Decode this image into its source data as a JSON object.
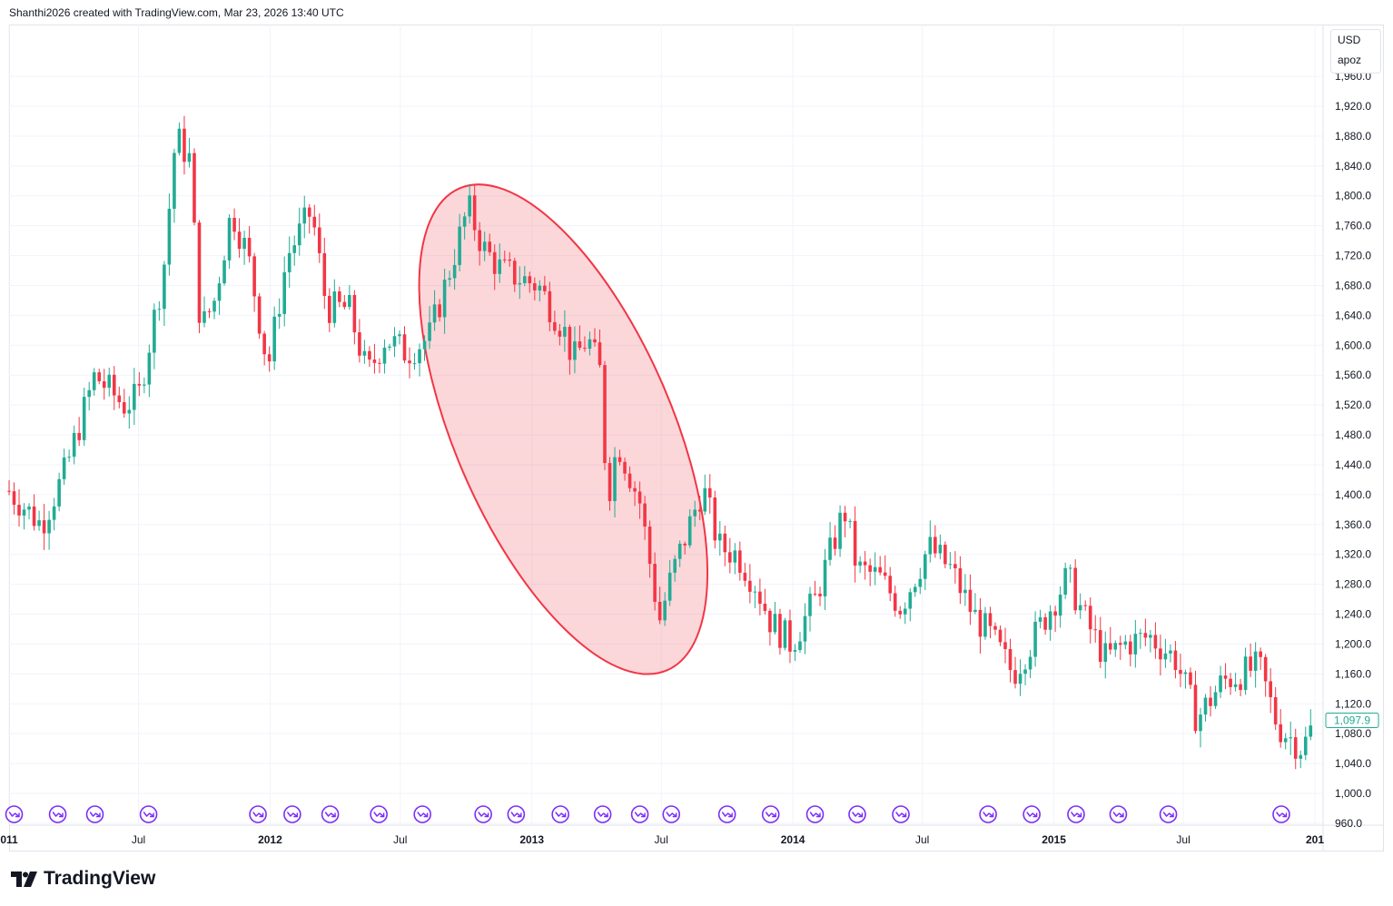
{
  "header": {
    "attribution": "Shanthi2026 created with TradingView.com, Mar 23, 2026 13:40 UTC"
  },
  "legend": {
    "currency": "USD",
    "unit": "apoz"
  },
  "brand": {
    "name": "TradingView"
  },
  "current_price": {
    "label": "1,097.9",
    "value": 1097.9,
    "color": "#22ab94"
  },
  "colors": {
    "up": "#22ab94",
    "down": "#f23645",
    "ellipse_stroke": "#f23645",
    "ellipse_fill": "#f2364533",
    "event_marker": "#7b2ff7",
    "grid": "#f0f3fa"
  },
  "icons": {
    "event_marker": "dividend-arrow-icon",
    "brand_logo": "tradingview-logo-icon"
  },
  "chart_data": {
    "type": "candlestick",
    "interval": "weekly",
    "y_axis": {
      "ticks": [
        "960.0",
        "1,000.0",
        "1,040.0",
        "1,080.0",
        "1,120.0",
        "1,160.0",
        "1,200.0",
        "1,240.0",
        "1,280.0",
        "1,320.0",
        "1,360.0",
        "1,400.0",
        "1,440.0",
        "1,480.0",
        "1,520.0",
        "1,560.0",
        "1,600.0",
        "1,640.0",
        "1,680.0",
        "1,720.0",
        "1,760.0",
        "1,800.0",
        "1,840.0",
        "1,880.0",
        "1,920.0",
        "1,960.0"
      ],
      "tick_values": [
        960,
        1000,
        1040,
        1080,
        1120,
        1160,
        1200,
        1240,
        1280,
        1320,
        1360,
        1400,
        1440,
        1480,
        1520,
        1560,
        1600,
        1640,
        1680,
        1720,
        1760,
        1800,
        1840,
        1880,
        1920,
        1960
      ],
      "ylim": [
        953,
        1990
      ]
    },
    "x_axis": {
      "ticks": [
        {
          "label": "011",
          "date": "2011-01-01",
          "major": true
        },
        {
          "label": "Jul",
          "date": "2011-07-01",
          "major": false
        },
        {
          "label": "2012",
          "date": "2012-01-01",
          "major": true
        },
        {
          "label": "Jul",
          "date": "2012-07-01",
          "major": false
        },
        {
          "label": "2013",
          "date": "2013-01-01",
          "major": true
        },
        {
          "label": "Jul",
          "date": "2013-07-01",
          "major": false
        },
        {
          "label": "2014",
          "date": "2014-01-01",
          "major": true
        },
        {
          "label": "Jul",
          "date": "2014-07-01",
          "major": false
        },
        {
          "label": "2015",
          "date": "2015-01-01",
          "major": true
        },
        {
          "label": "Jul",
          "date": "2015-07-01",
          "major": false
        },
        {
          "label": "201",
          "date": "2016-01-01",
          "major": true
        }
      ]
    },
    "anchors": [
      [
        "2011-01-01",
        1405
      ],
      [
        "2011-02-15",
        1360
      ],
      [
        "2011-03-20",
        1430
      ],
      [
        "2011-05-01",
        1560
      ],
      [
        "2011-06-10",
        1520
      ],
      [
        "2011-07-01",
        1530
      ],
      [
        "2011-08-05",
        1700
      ],
      [
        "2011-08-22",
        1880
      ],
      [
        "2011-09-10",
        1850
      ],
      [
        "2011-09-26",
        1620
      ],
      [
        "2011-10-15",
        1660
      ],
      [
        "2011-11-08",
        1780
      ],
      [
        "2011-12-01",
        1720
      ],
      [
        "2011-12-29",
        1570
      ],
      [
        "2012-01-25",
        1720
      ],
      [
        "2012-02-28",
        1780
      ],
      [
        "2012-03-20",
        1650
      ],
      [
        "2012-04-20",
        1650
      ],
      [
        "2012-05-16",
        1560
      ],
      [
        "2012-06-10",
        1610
      ],
      [
        "2012-07-10",
        1590
      ],
      [
        "2012-08-10",
        1610
      ],
      [
        "2012-09-05",
        1690
      ],
      [
        "2012-10-04",
        1785
      ],
      [
        "2012-10-25",
        1730
      ],
      [
        "2012-11-20",
        1700
      ],
      [
        "2012-12-15",
        1690
      ],
      [
        "2013-01-10",
        1680
      ],
      [
        "2013-02-15",
        1620
      ],
      [
        "2013-02-28",
        1580
      ],
      [
        "2013-03-20",
        1610
      ],
      [
        "2013-04-08",
        1560
      ],
      [
        "2013-04-16",
        1390
      ],
      [
        "2013-05-01",
        1470
      ],
      [
        "2013-06-01",
        1390
      ],
      [
        "2013-06-20",
        1280
      ],
      [
        "2013-06-28",
        1230
      ],
      [
        "2013-07-15",
        1290
      ],
      [
        "2013-08-28",
        1410
      ],
      [
        "2013-09-20",
        1330
      ],
      [
        "2013-10-15",
        1320
      ],
      [
        "2013-11-10",
        1280
      ],
      [
        "2013-12-01",
        1230
      ],
      [
        "2013-12-30",
        1200
      ],
      [
        "2014-02-01",
        1260
      ],
      [
        "2014-03-14",
        1380
      ],
      [
        "2014-04-01",
        1300
      ],
      [
        "2014-05-01",
        1290
      ],
      [
        "2014-06-01",
        1250
      ],
      [
        "2014-07-10",
        1330
      ],
      [
        "2014-08-10",
        1300
      ],
      [
        "2014-09-10",
        1240
      ],
      [
        "2014-10-05",
        1210
      ],
      [
        "2014-11-05",
        1160
      ],
      [
        "2014-12-05",
        1210
      ],
      [
        "2015-01-20",
        1290
      ],
      [
        "2015-02-15",
        1230
      ],
      [
        "2015-03-15",
        1180
      ],
      [
        "2015-04-10",
        1200
      ],
      [
        "2015-05-15",
        1210
      ],
      [
        "2015-06-20",
        1180
      ],
      [
        "2015-07-20",
        1100
      ],
      [
        "2015-08-25",
        1150
      ],
      [
        "2015-10-15",
        1170
      ],
      [
        "2015-11-10",
        1090
      ],
      [
        "2015-12-15",
        1060
      ],
      [
        "2016-01-01",
        1097.9
      ]
    ],
    "highlight": {
      "shape": "ellipse",
      "from": "2012-10-01",
      "to": "2013-06-30",
      "price_high": 1790,
      "price_low": 1185
    },
    "event_markers": [
      "2011-01-08",
      "2011-03-10",
      "2011-05-01",
      "2011-07-15",
      "2011-12-15",
      "2012-02-01",
      "2012-03-25",
      "2012-06-01",
      "2012-08-01",
      "2012-10-25",
      "2012-12-10",
      "2013-02-10",
      "2013-04-10",
      "2013-06-01",
      "2013-07-15",
      "2013-10-01",
      "2013-12-01",
      "2014-02-01",
      "2014-04-01",
      "2014-06-01",
      "2014-10-01",
      "2014-12-01",
      "2015-02-01",
      "2015-04-01",
      "2015-06-10",
      "2015-11-15"
    ]
  }
}
